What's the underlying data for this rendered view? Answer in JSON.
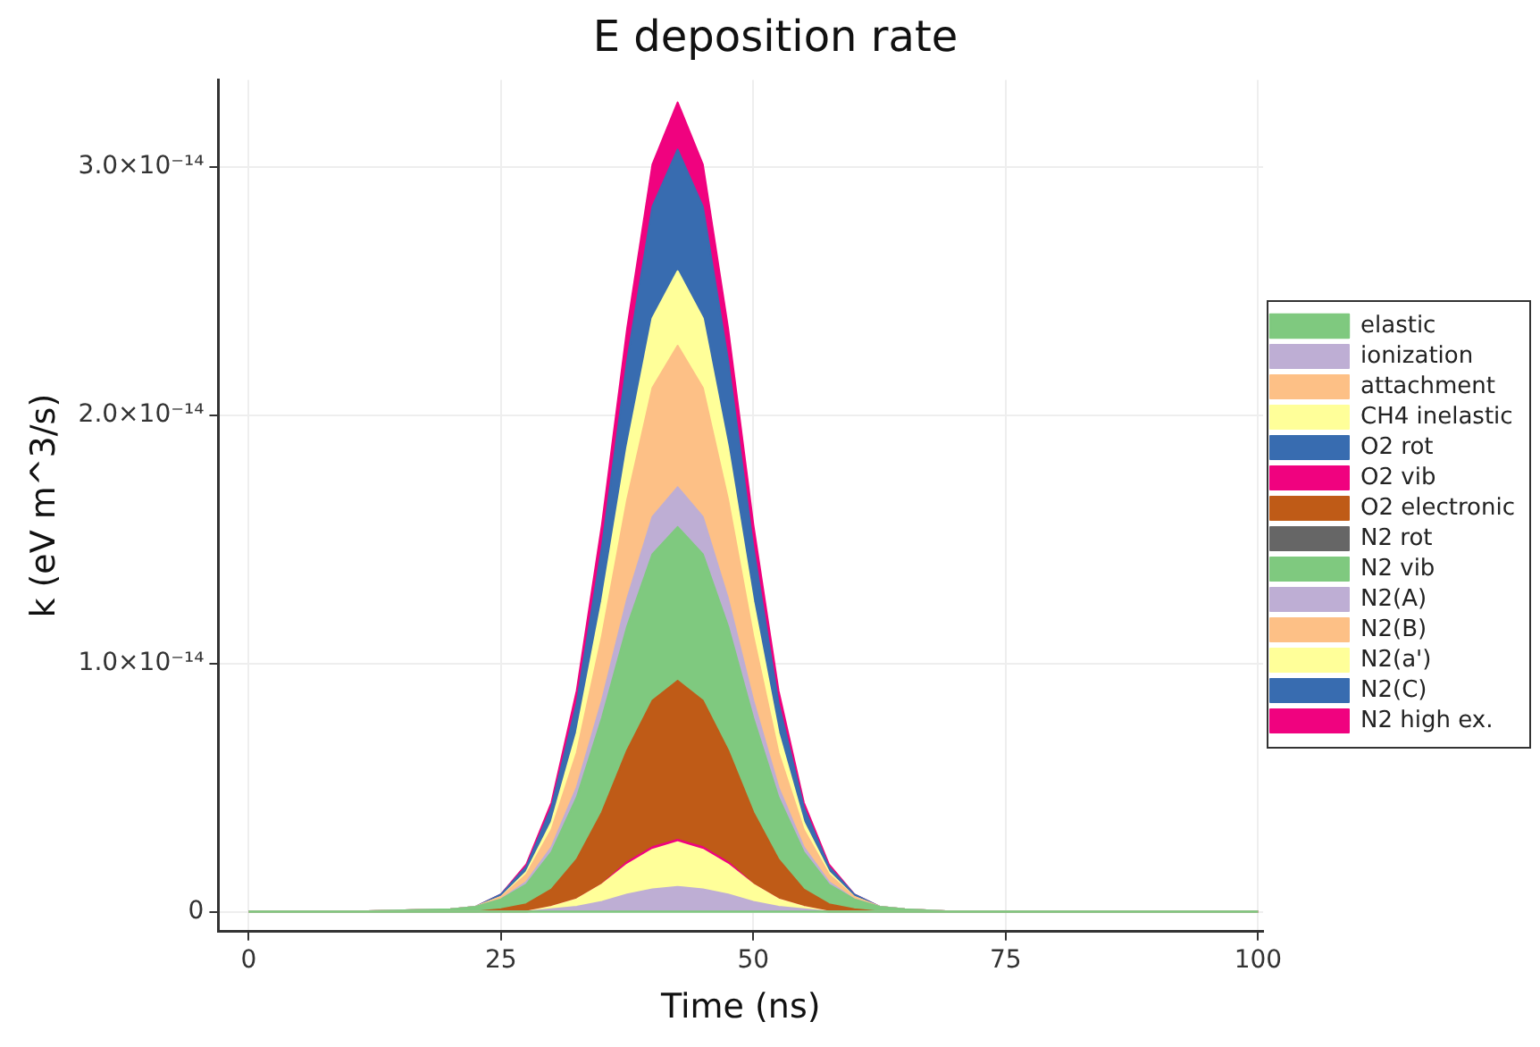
{
  "chart_data": {
    "type": "area",
    "title": "E deposition rate",
    "xlabel": "Time (ns)",
    "ylabel": "k (eV m^3/s)",
    "stacked": true,
    "legend": "right",
    "grid": true,
    "x": [
      0,
      10,
      20,
      22.5,
      25,
      27.5,
      30,
      32.5,
      35,
      37.5,
      40,
      42.5,
      45,
      47.5,
      50,
      52.5,
      55,
      57.5,
      60,
      62.5,
      65,
      70,
      80,
      90,
      100
    ],
    "xlim": [
      -3,
      100.5
    ],
    "xticks": [
      0,
      25,
      50,
      75,
      100
    ],
    "ylim": [
      -8e-16,
      3.35e-14
    ],
    "yticks": [
      {
        "value": 0,
        "label": "0"
      },
      {
        "value": 1e-14,
        "label": "1.0×10⁻¹⁴"
      },
      {
        "value": 2e-14,
        "label": "2.0×10⁻¹⁴"
      },
      {
        "value": 3e-14,
        "label": "3.0×10⁻¹⁴"
      }
    ],
    "series": [
      {
        "name": "elastic",
        "color": "#7fc97f",
        "type": "line",
        "values": [
          0,
          0,
          0,
          0,
          0,
          0,
          0,
          0,
          0,
          0,
          0,
          0,
          0,
          0,
          0,
          0,
          0,
          0,
          0,
          0,
          0,
          0,
          0,
          0,
          0
        ]
      },
      {
        "name": "ionization",
        "color": "#beaed4",
        "values": [
          0,
          0,
          0,
          0,
          0,
          0,
          1e-16,
          2e-16,
          4e-16,
          7e-16,
          9e-16,
          1e-15,
          9e-16,
          7e-16,
          4e-16,
          2e-16,
          1e-16,
          0,
          0,
          0,
          0,
          0,
          0,
          0,
          0
        ]
      },
      {
        "name": "attachment",
        "color": "#fdc086",
        "values": [
          null,
          null,
          null,
          null,
          null,
          null,
          null,
          null,
          null,
          null,
          null,
          null,
          null,
          null,
          null,
          null,
          null,
          null,
          null,
          null,
          null,
          null,
          null,
          null,
          null
        ]
      },
      {
        "name": "CH4 inelastic",
        "color": "#ffff99",
        "values": [
          0,
          0,
          0,
          0,
          0,
          0,
          1e-16,
          3e-16,
          7e-16,
          1.2e-15,
          1.6e-15,
          1.8e-15,
          1.6e-15,
          1.2e-15,
          7e-16,
          3e-16,
          1e-16,
          0,
          0,
          0,
          0,
          0,
          0,
          0,
          0
        ]
      },
      {
        "name": "O2 rot",
        "color": "#386cb0",
        "values": [
          null,
          null,
          null,
          null,
          null,
          null,
          null,
          null,
          null,
          null,
          null,
          null,
          null,
          null,
          null,
          null,
          null,
          null,
          null,
          null,
          null,
          null,
          null,
          null,
          null
        ]
      },
      {
        "name": "O2 vib",
        "color": "#f0027f",
        "values": [
          0,
          0,
          0,
          0,
          0,
          0,
          0,
          0,
          0,
          1e-16,
          1e-16,
          1e-16,
          1e-16,
          1e-16,
          0,
          0,
          0,
          0,
          0,
          0,
          0,
          0,
          0,
          0,
          0
        ]
      },
      {
        "name": "O2 electronic",
        "color": "#bf5b17",
        "values": [
          0,
          0,
          0,
          0,
          1e-16,
          3e-16,
          7e-16,
          1.6e-15,
          2.9e-15,
          4.5e-15,
          5.9e-15,
          6.4e-15,
          5.9e-15,
          4.5e-15,
          2.9e-15,
          1.6e-15,
          7e-16,
          3e-16,
          1e-16,
          0,
          0,
          0,
          0,
          0,
          0
        ]
      },
      {
        "name": "N2 rot",
        "color": "#666666",
        "values": [
          null,
          null,
          null,
          null,
          null,
          null,
          null,
          null,
          null,
          null,
          null,
          null,
          null,
          null,
          null,
          null,
          null,
          null,
          null,
          null,
          null,
          null,
          null,
          null,
          null
        ]
      },
      {
        "name": "N2 vib",
        "color": "#7fc97f",
        "values": [
          0,
          0,
          1e-16,
          2e-16,
          4e-16,
          8e-16,
          1.5e-15,
          2.5e-15,
          3.8e-15,
          5e-15,
          5.9e-15,
          6.2e-15,
          5.9e-15,
          5e-15,
          3.8e-15,
          2.5e-15,
          1.5e-15,
          8e-16,
          4e-16,
          2e-16,
          1e-16,
          0,
          0,
          0,
          0
        ]
      },
      {
        "name": "N2(A)",
        "color": "#beaed4",
        "values": [
          0,
          0,
          0,
          0,
          0,
          1e-16,
          2e-16,
          4e-16,
          7e-16,
          1.1e-15,
          1.5e-15,
          1.6e-15,
          1.5e-15,
          1.1e-15,
          7e-16,
          4e-16,
          2e-16,
          1e-16,
          0,
          0,
          0,
          0,
          0,
          0,
          0
        ]
      },
      {
        "name": "N2(B)",
        "color": "#fdc086",
        "values": [
          0,
          0,
          0,
          0,
          1e-16,
          3e-16,
          7e-16,
          1.4e-15,
          2.6e-15,
          4e-15,
          5.2e-15,
          5.7e-15,
          5.2e-15,
          4e-15,
          2.6e-15,
          1.4e-15,
          7e-16,
          3e-16,
          1e-16,
          0,
          0,
          0,
          0,
          0,
          0
        ]
      },
      {
        "name": "N2(a')",
        "color": "#ffff99",
        "values": [
          0,
          0,
          0,
          0,
          0,
          1e-16,
          3e-16,
          8e-16,
          1.4e-15,
          2.1e-15,
          2.8e-15,
          3e-15,
          2.8e-15,
          2.1e-15,
          1.4e-15,
          8e-16,
          3e-16,
          1e-16,
          0,
          0,
          0,
          0,
          0,
          0,
          0
        ]
      },
      {
        "name": "N2(C)",
        "color": "#386cb0",
        "values": [
          0,
          0,
          0,
          0,
          1e-16,
          2e-16,
          6e-16,
          1.2e-15,
          2.2e-15,
          3.5e-15,
          4.5e-15,
          4.9e-15,
          4.5e-15,
          3.5e-15,
          2.2e-15,
          1.2e-15,
          6e-16,
          2e-16,
          1e-16,
          0,
          0,
          0,
          0,
          0,
          0
        ]
      },
      {
        "name": "N2 high ex.",
        "color": "#f0027f",
        "values": [
          0,
          0,
          0,
          0,
          0,
          1e-16,
          2e-16,
          5e-16,
          9e-16,
          1.3e-15,
          1.7e-15,
          1.9e-15,
          1.7e-15,
          1.3e-15,
          9e-16,
          5e-16,
          2e-16,
          1e-16,
          0,
          0,
          0,
          0,
          0,
          0,
          0
        ]
      }
    ]
  }
}
